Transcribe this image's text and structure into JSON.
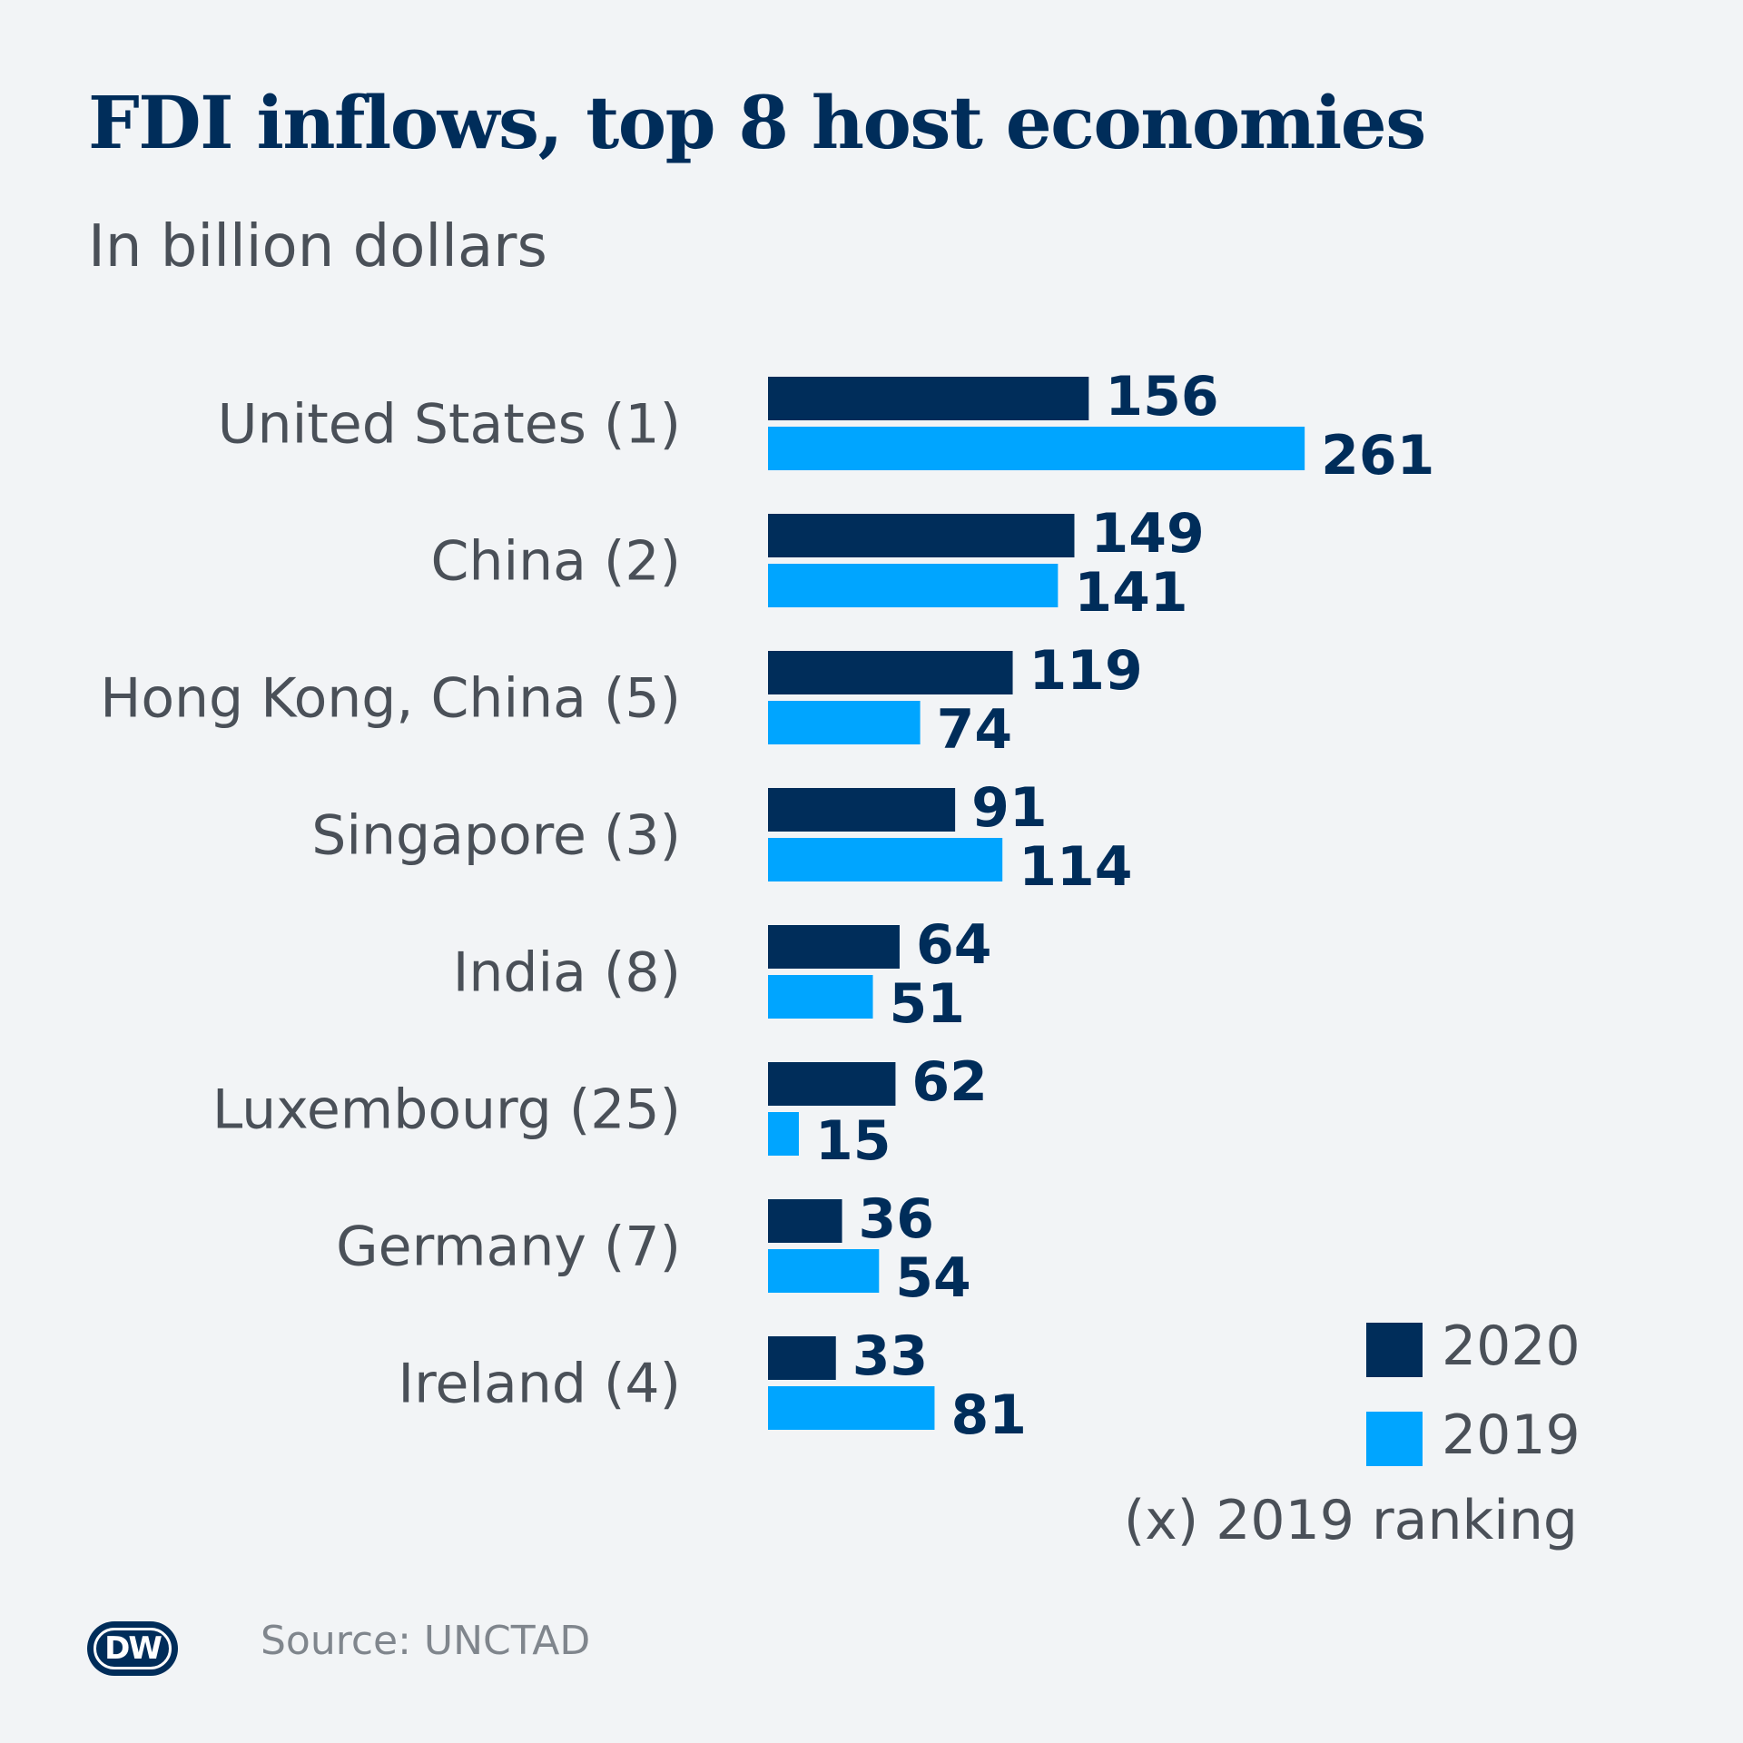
{
  "header": {
    "title": "FDI inflows, top 8 host economies",
    "subtitle": "In billion dollars"
  },
  "colors": {
    "series_2020": "#002d5a",
    "series_2019": "#00a5ff",
    "background": "#f2f4f6",
    "text": "#4a5058"
  },
  "chart_data": {
    "type": "bar",
    "orientation": "horizontal",
    "categories": [
      "United States (1)",
      "China (2)",
      "Hong Kong, China (5)",
      "Singapore (3)",
      "India (8)",
      "Luxembourg (25)",
      "Germany (7)",
      "Ireland (4)"
    ],
    "series": [
      {
        "name": "2020",
        "values": [
          156,
          149,
          119,
          91,
          64,
          62,
          36,
          33
        ]
      },
      {
        "name": "2019",
        "values": [
          261,
          141,
          74,
          114,
          51,
          15,
          54,
          81
        ]
      }
    ],
    "title": "FDI inflows, top 8 host economies",
    "subtitle": "In billion dollars",
    "legend_position": "bottom-right",
    "grid": false,
    "data_labels": true
  },
  "legend": {
    "items": [
      {
        "label": "2020"
      },
      {
        "label": "2019"
      }
    ],
    "note": "(x) 2019 ranking"
  },
  "footer": {
    "logo_text": "DW",
    "source": "Source: UNCTAD"
  }
}
